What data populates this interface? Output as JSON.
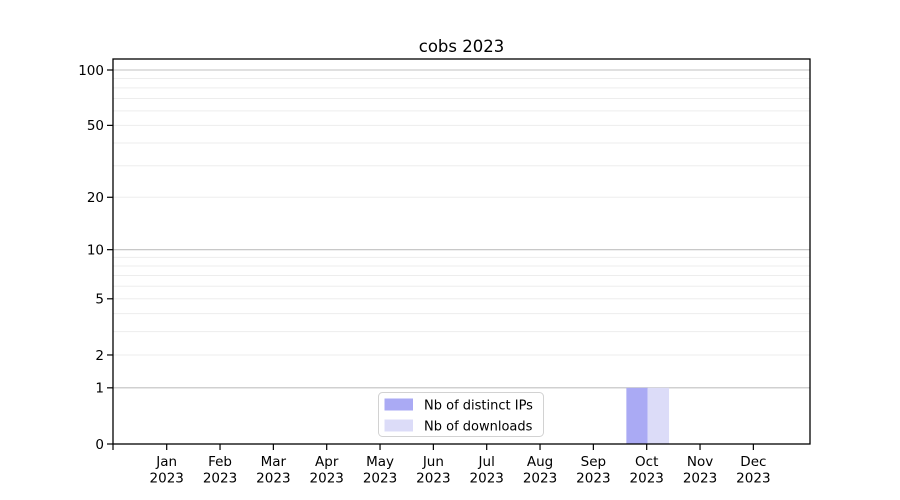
{
  "chart_data": {
    "type": "bar",
    "title": "cobs 2023",
    "categories": [
      "Jan",
      "Feb",
      "Mar",
      "Apr",
      "May",
      "Jun",
      "Jul",
      "Aug",
      "Sep",
      "Oct",
      "Nov",
      "Dec"
    ],
    "year_label": "2023",
    "series": [
      {
        "name": "Nb of distinct IPs",
        "color": "#aaaaf4",
        "values": [
          0,
          0,
          0,
          0,
          0,
          0,
          0,
          0,
          0,
          1,
          0,
          0
        ]
      },
      {
        "name": "Nb of downloads",
        "color": "#dcdcf8",
        "values": [
          0,
          0,
          0,
          0,
          0,
          0,
          0,
          0,
          0,
          1,
          0,
          0
        ]
      }
    ],
    "yscale": "log1p",
    "ylim": [
      0,
      100
    ],
    "y_tick_values": [
      0,
      1,
      2,
      5,
      10,
      20,
      50,
      100
    ],
    "y_tick_labels": [
      "0",
      "1",
      "2",
      "5",
      "10",
      "20",
      "50",
      "100"
    ],
    "y_major_gridlines": [
      1,
      10,
      100
    ],
    "y_minor_gridlines": [
      2,
      3,
      4,
      5,
      6,
      7,
      8,
      9,
      20,
      30,
      40,
      50,
      60,
      70,
      80,
      90
    ],
    "grid": "horizontal",
    "legend_position": "bottom-center",
    "colors": {
      "background": "#ffffff",
      "axis": "#000000",
      "major_grid": "#c0c0c0",
      "minor_grid": "#ededed",
      "legend_border": "#d2d2d2",
      "legend_background": "#ffffff"
    }
  }
}
